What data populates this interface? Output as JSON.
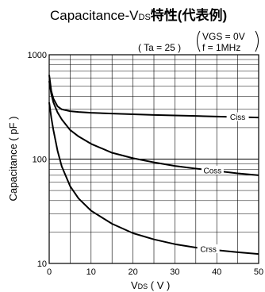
{
  "chart_data": {
    "type": "line",
    "title_main": "Capacitance-V",
    "title_sub": "DS",
    "title_suffix": "特性(代表例)",
    "conditions": {
      "ta": "( Ta = 25   )",
      "vgs": "VGS = 0V",
      "freq": "f = 1MHz"
    },
    "xlabel_main": "V",
    "xlabel_sub": "DS",
    "xlabel_unit": " ( V )",
    "ylabel": "Capacitance ( pF )",
    "xlim": [
      0,
      50
    ],
    "ylim": [
      10,
      1000
    ],
    "yscale": "log",
    "grid": true,
    "x_ticks": [
      "0",
      "10",
      "20",
      "30",
      "40",
      "50"
    ],
    "y_ticks": [
      "10",
      "100",
      "1000"
    ],
    "series": [
      {
        "name": "Ciss",
        "x": [
          0,
          0.5,
          1,
          2,
          3,
          5,
          7,
          10,
          15,
          20,
          25,
          30,
          35,
          40,
          45,
          50
        ],
        "y": [
          640,
          450,
          380,
          320,
          300,
          288,
          283,
          278,
          273,
          269,
          265,
          262,
          259,
          256,
          253,
          250
        ]
      },
      {
        "name": "Coss",
        "x": [
          0,
          0.5,
          1,
          2,
          3,
          5,
          7,
          10,
          15,
          20,
          25,
          30,
          35,
          40,
          45,
          50
        ],
        "y": [
          560,
          420,
          350,
          280,
          240,
          190,
          165,
          140,
          115,
          102,
          93,
          86,
          81,
          77,
          73,
          70
        ]
      },
      {
        "name": "Crss",
        "x": [
          0,
          0.5,
          1,
          2,
          3,
          5,
          7,
          10,
          15,
          20,
          25,
          30,
          35,
          40,
          45,
          50
        ],
        "y": [
          350,
          250,
          190,
          120,
          85,
          55,
          42,
          32,
          24,
          19.5,
          17,
          15.3,
          14.2,
          13.4,
          12.8,
          12.3
        ]
      }
    ]
  }
}
